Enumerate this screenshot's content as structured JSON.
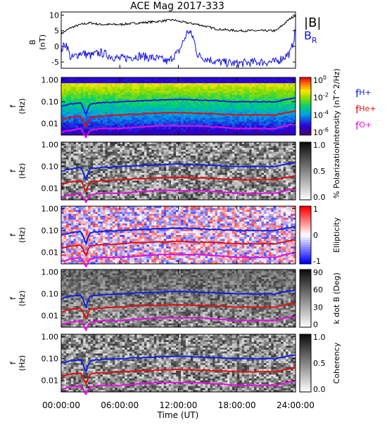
{
  "title": "ACE Mag 2017-333",
  "time_axis": {
    "ticks": [
      "00:00:00",
      "06:00:00",
      "12:00:00",
      "18:00:00",
      "24:00:00"
    ],
    "label": "Time (UT)"
  },
  "freq_ticks": [
    "1.00",
    "0.10",
    "0.01"
  ],
  "freq_axis_label": [
    "f",
    "(Hz)"
  ],
  "colors": {
    "B_total": "#000000",
    "B_R": "#1010e0",
    "f_H": "#1020e0",
    "f_He": "#e01010",
    "f_O": "#e010e0"
  },
  "chart_data": [
    {
      "type": "line",
      "title": "ACE Mag 2017-333",
      "ylabel": "B (nT)",
      "yticks": [
        "10",
        "5",
        "0",
        "-5"
      ],
      "ylim": [
        -7,
        11
      ],
      "x_range_hours": [
        0,
        24
      ],
      "legend": [
        "|B|",
        "B_R"
      ],
      "series": [
        {
          "name": "|B|",
          "x": [
            0,
            1,
            2,
            3,
            4,
            6,
            8,
            10,
            11.5,
            12,
            13,
            14,
            16,
            18,
            20,
            22,
            23.5,
            24
          ],
          "y": [
            4,
            6,
            7,
            7.5,
            7,
            7,
            7.5,
            8,
            8.5,
            8,
            7.5,
            7,
            5.5,
            5,
            5,
            5,
            9,
            10
          ]
        },
        {
          "name": "B_R",
          "x": [
            0,
            0.5,
            1,
            2,
            3,
            4,
            6,
            8,
            10,
            11,
            11.5,
            12,
            13,
            13.5,
            14,
            15,
            16,
            18,
            20,
            22,
            23.5,
            24
          ],
          "y": [
            -1,
            1,
            -4,
            -2,
            -3,
            -2,
            -4,
            -3,
            -4,
            -5,
            -3,
            -2,
            5,
            3,
            -3,
            -4,
            -5,
            -5.5,
            -5,
            -5,
            -2,
            5
          ]
        }
      ]
    },
    {
      "type": "heatmap",
      "ylabel": "f (Hz)",
      "colorbar_label": "Intensity (nT^2/Hz)",
      "colorbar_ticks": [
        "10^0",
        "10^-2",
        "10^-4",
        "10^-6"
      ],
      "colorscale": "rainbow",
      "overlay_lines": [
        "f_H+",
        "f_He+",
        "f_O+"
      ]
    },
    {
      "type": "heatmap",
      "ylabel": "f (Hz)",
      "colorbar_label": "% Polarization",
      "colorbar_ticks": [
        "1.0",
        "0.5",
        "0.0"
      ],
      "colorscale": "grayscale"
    },
    {
      "type": "heatmap",
      "ylabel": "f (Hz)",
      "colorbar_label": "Ellipticity",
      "colorbar_ticks": [
        "1",
        "0",
        "-1"
      ],
      "colorscale": "red-white-blue"
    },
    {
      "type": "heatmap",
      "ylabel": "f (Hz)",
      "colorbar_label": "k dot B (Deg)",
      "colorbar_ticks": [
        "90",
        "60",
        "30",
        "0"
      ],
      "colorscale": "grayscale"
    },
    {
      "type": "heatmap",
      "ylabel": "f (Hz)",
      "colorbar_label": "Coherency",
      "colorbar_ticks": [
        "1.0",
        "0.5",
        "0.0"
      ],
      "colorscale": "grayscale"
    }
  ],
  "gyrofrequency_lines": {
    "legend": [
      "f_H+",
      "f_He+",
      "f_O+"
    ],
    "x": [
      0,
      1,
      2,
      2.5,
      3,
      4,
      6,
      8,
      10,
      12,
      14,
      16,
      18,
      20,
      22,
      23.5,
      24
    ],
    "f_H": [
      0.06,
      0.08,
      0.09,
      0.02,
      0.08,
      0.09,
      0.1,
      0.11,
      0.12,
      0.13,
      0.12,
      0.11,
      0.1,
      0.1,
      0.1,
      0.14,
      0.15
    ],
    "f_He": [
      0.015,
      0.02,
      0.022,
      0.006,
      0.02,
      0.022,
      0.025,
      0.028,
      0.03,
      0.032,
      0.03,
      0.028,
      0.025,
      0.025,
      0.025,
      0.035,
      0.037
    ],
    "f_O": [
      0.004,
      0.005,
      0.006,
      0.002,
      0.005,
      0.006,
      0.006,
      0.007,
      0.008,
      0.008,
      0.008,
      0.007,
      0.006,
      0.006,
      0.006,
      0.009,
      0.009
    ]
  }
}
